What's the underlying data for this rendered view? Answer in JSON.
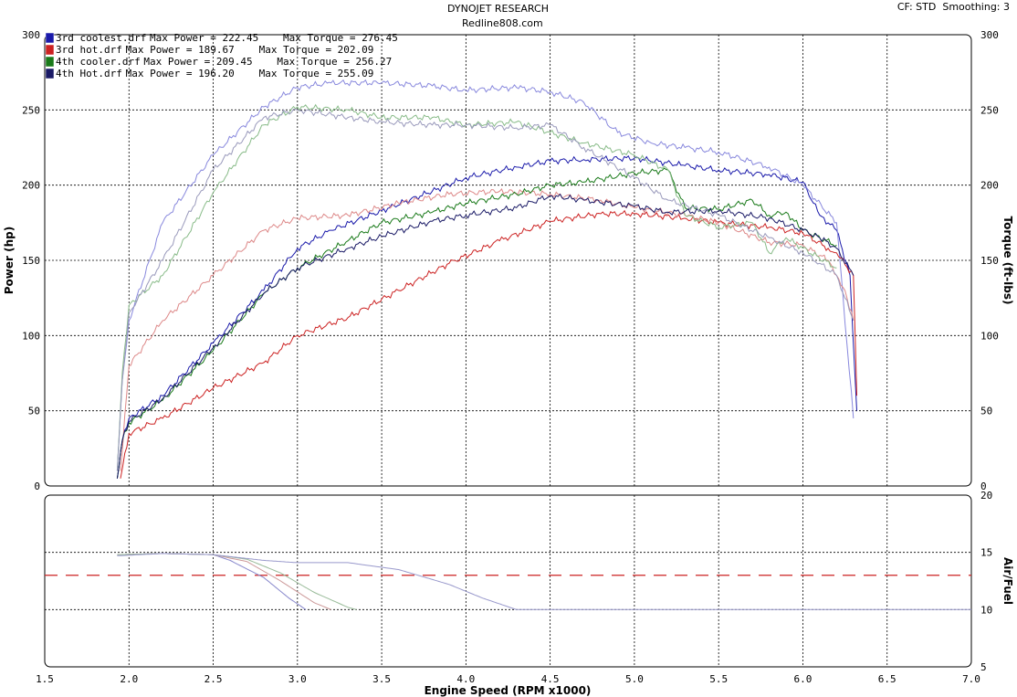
{
  "header": {
    "title": "DYNOJET RESEARCH",
    "subtitle": "Redline808.com",
    "cf_label": "CF: STD",
    "smoothing_label": "Smoothing: 3"
  },
  "legend": [
    {
      "name": "3rd coolest.drf",
      "power_text": "Max Power = 222.45",
      "torque_text": "Max Torque = 276.45",
      "color": "#1a1aaa"
    },
    {
      "name": "3rd hot.drf",
      "power_text": "Max Power = 189.67",
      "torque_text": "Max Torque = 202.09",
      "color": "#cc2222"
    },
    {
      "name": "4th cooler.drf",
      "power_text": "Max Power = 209.45",
      "torque_text": "Max Torque = 256.27",
      "color": "#1a7a1a"
    },
    {
      "name": "4th Hot.drf",
      "power_text": "Max Power = 196.20",
      "torque_text": "Max Torque = 255.09",
      "color": "#1a1a66"
    }
  ],
  "chart_data": [
    {
      "type": "line",
      "title": "DYNOJET RESEARCH",
      "subtitle": "Redline808.com",
      "xlabel": "Engine Speed (RPM x1000)",
      "ylabel": "Power (hp)",
      "y2label": "Torque (ft-lbs)",
      "xlim": [
        1.5,
        7.0
      ],
      "ylim": [
        0,
        300
      ],
      "y2lim": [
        0,
        300
      ],
      "x_ticks": [
        "1.5",
        "2.0",
        "2.5",
        "3.0",
        "3.5",
        "4.0",
        "4.5",
        "5.0",
        "5.5",
        "6.0",
        "6.5",
        "7.0"
      ],
      "y_ticks": [
        "0",
        "50",
        "100",
        "150",
        "200",
        "250",
        "300"
      ],
      "grid": true,
      "legend_position": "top-left",
      "series": [
        {
          "name": "3rd coolest.drf",
          "measure": "power",
          "color": "#1a1aaa",
          "x": [
            1.93,
            1.96,
            2.0,
            2.2,
            2.5,
            2.8,
            3.0,
            3.2,
            3.5,
            3.8,
            4.0,
            4.3,
            4.5,
            4.7,
            5.0,
            5.3,
            5.5,
            5.8,
            6.0,
            6.1,
            6.2,
            6.28,
            6.32
          ],
          "y": [
            5,
            30,
            45,
            60,
            95,
            130,
            158,
            170,
            183,
            196,
            205,
            212,
            216,
            217,
            218,
            213,
            210,
            207,
            202,
            180,
            170,
            140,
            50
          ]
        },
        {
          "name": "3rd coolest.drf",
          "measure": "torque",
          "color": "#8888dd",
          "x": [
            1.93,
            1.96,
            2.0,
            2.2,
            2.5,
            2.8,
            3.0,
            3.2,
            3.5,
            3.8,
            4.0,
            4.3,
            4.5,
            4.7,
            4.9,
            5.1,
            5.3,
            5.5,
            5.8,
            6.0,
            6.2,
            6.3
          ],
          "y": [
            10,
            70,
            110,
            175,
            220,
            252,
            265,
            268,
            268,
            266,
            263,
            265,
            262,
            255,
            235,
            228,
            225,
            222,
            212,
            200,
            175,
            45
          ]
        },
        {
          "name": "3rd hot.drf",
          "measure": "power",
          "color": "#cc2222",
          "x": [
            1.95,
            2.0,
            2.2,
            2.5,
            2.8,
            3.0,
            3.3,
            3.6,
            3.9,
            4.2,
            4.5,
            4.8,
            5.0,
            5.3,
            5.5,
            5.8,
            6.0,
            6.15,
            6.2,
            6.3,
            6.32
          ],
          "y": [
            5,
            35,
            45,
            65,
            82,
            100,
            112,
            130,
            148,
            163,
            176,
            181,
            181,
            178,
            175,
            172,
            168,
            158,
            155,
            140,
            60
          ]
        },
        {
          "name": "3rd hot.drf",
          "measure": "torque",
          "color": "#dd8888",
          "x": [
            1.95,
            2.0,
            2.2,
            2.5,
            2.8,
            3.0,
            3.3,
            3.6,
            3.9,
            4.2,
            4.5,
            4.8,
            5.0,
            5.3,
            5.5,
            5.8,
            6.0,
            6.15,
            6.2,
            6.25,
            6.3
          ],
          "y": [
            10,
            80,
            110,
            140,
            170,
            178,
            180,
            188,
            194,
            196,
            194,
            190,
            185,
            180,
            175,
            162,
            160,
            150,
            140,
            130,
            110
          ]
        },
        {
          "name": "4th cooler.drf",
          "measure": "power",
          "color": "#1a7a1a",
          "x": [
            1.93,
            1.96,
            2.0,
            2.2,
            2.5,
            2.8,
            3.0,
            3.3,
            3.5,
            3.8,
            4.0,
            4.3,
            4.5,
            4.7,
            5.0,
            5.2,
            5.3,
            5.5,
            5.7,
            5.8,
            5.9,
            6.0,
            6.2
          ],
          "y": [
            5,
            30,
            42,
            57,
            90,
            128,
            145,
            163,
            175,
            182,
            188,
            194,
            200,
            202,
            208,
            210,
            185,
            184,
            190,
            180,
            182,
            170,
            160
          ]
        },
        {
          "name": "4th cooler.drf",
          "measure": "torque",
          "color": "#88bb88",
          "x": [
            1.93,
            1.96,
            2.0,
            2.2,
            2.5,
            2.8,
            3.0,
            3.3,
            3.5,
            3.8,
            4.0,
            4.3,
            4.5,
            4.7,
            5.0,
            5.2,
            5.3,
            5.5,
            5.7,
            5.8,
            5.9,
            6.0,
            6.2
          ],
          "y": [
            10,
            75,
            120,
            140,
            195,
            240,
            252,
            250,
            245,
            245,
            240,
            242,
            235,
            228,
            220,
            210,
            180,
            172,
            175,
            155,
            165,
            158,
            145
          ]
        },
        {
          "name": "4th Hot.drf",
          "measure": "power",
          "color": "#1a1a66",
          "x": [
            1.93,
            1.96,
            2.0,
            2.2,
            2.5,
            2.8,
            3.0,
            3.3,
            3.5,
            3.8,
            4.0,
            4.3,
            4.5,
            4.7,
            5.0,
            5.2,
            5.5,
            5.8,
            6.0,
            6.1,
            6.2,
            6.3
          ],
          "y": [
            5,
            30,
            43,
            58,
            92,
            128,
            145,
            158,
            166,
            176,
            180,
            185,
            193,
            190,
            186,
            182,
            183,
            178,
            170,
            165,
            158,
            140
          ]
        },
        {
          "name": "4th Hot.drf",
          "measure": "torque",
          "color": "#9999bb",
          "x": [
            1.93,
            1.96,
            2.0,
            2.2,
            2.5,
            2.8,
            3.0,
            3.3,
            3.5,
            3.8,
            4.0,
            4.3,
            4.5,
            4.7,
            5.0,
            5.2,
            5.5,
            5.8,
            6.0,
            6.1,
            6.2,
            6.3
          ],
          "y": [
            10,
            70,
            115,
            150,
            210,
            245,
            250,
            245,
            242,
            240,
            240,
            238,
            240,
            225,
            205,
            190,
            180,
            165,
            155,
            148,
            140,
            110
          ]
        }
      ]
    },
    {
      "type": "line",
      "ylabel": "Air/Fuel",
      "xlim": [
        1.5,
        7.0
      ],
      "ylim": [
        5,
        20
      ],
      "y_ticks": [
        "5",
        "10",
        "15",
        "20"
      ],
      "grid": true,
      "reference_line": {
        "y": 13,
        "color": "#cc2222",
        "style": "dashed"
      },
      "series": [
        {
          "name": "3rd coolest.drf",
          "color": "#8888cc",
          "x": [
            1.93,
            2.2,
            2.5,
            2.6,
            2.8,
            2.95,
            3.05
          ],
          "y": [
            14.8,
            14.9,
            14.8,
            14.3,
            12.8,
            11.0,
            10.0
          ]
        },
        {
          "name": "3rd hot.drf",
          "color": "#cc9999",
          "x": [
            1.93,
            2.2,
            2.5,
            2.7,
            2.9,
            3.1,
            3.2
          ],
          "y": [
            14.8,
            14.9,
            14.8,
            14.2,
            12.5,
            10.6,
            10.0
          ]
        },
        {
          "name": "4th cooler.drf",
          "color": "#99bb99",
          "x": [
            1.93,
            2.2,
            2.5,
            2.7,
            2.9,
            3.1,
            3.3,
            3.35
          ],
          "y": [
            14.8,
            14.9,
            14.8,
            14.4,
            13.2,
            11.5,
            10.2,
            10.0
          ]
        },
        {
          "name": "4th Hot.drf",
          "color": "#9999cc",
          "x": [
            1.93,
            2.2,
            2.5,
            2.8,
            3.0,
            3.3,
            3.6,
            3.9,
            4.1,
            4.3,
            7.0
          ],
          "y": [
            14.7,
            14.9,
            14.8,
            14.3,
            14.1,
            14.1,
            13.5,
            12.2,
            11.0,
            10.0,
            10.0
          ]
        }
      ]
    }
  ]
}
